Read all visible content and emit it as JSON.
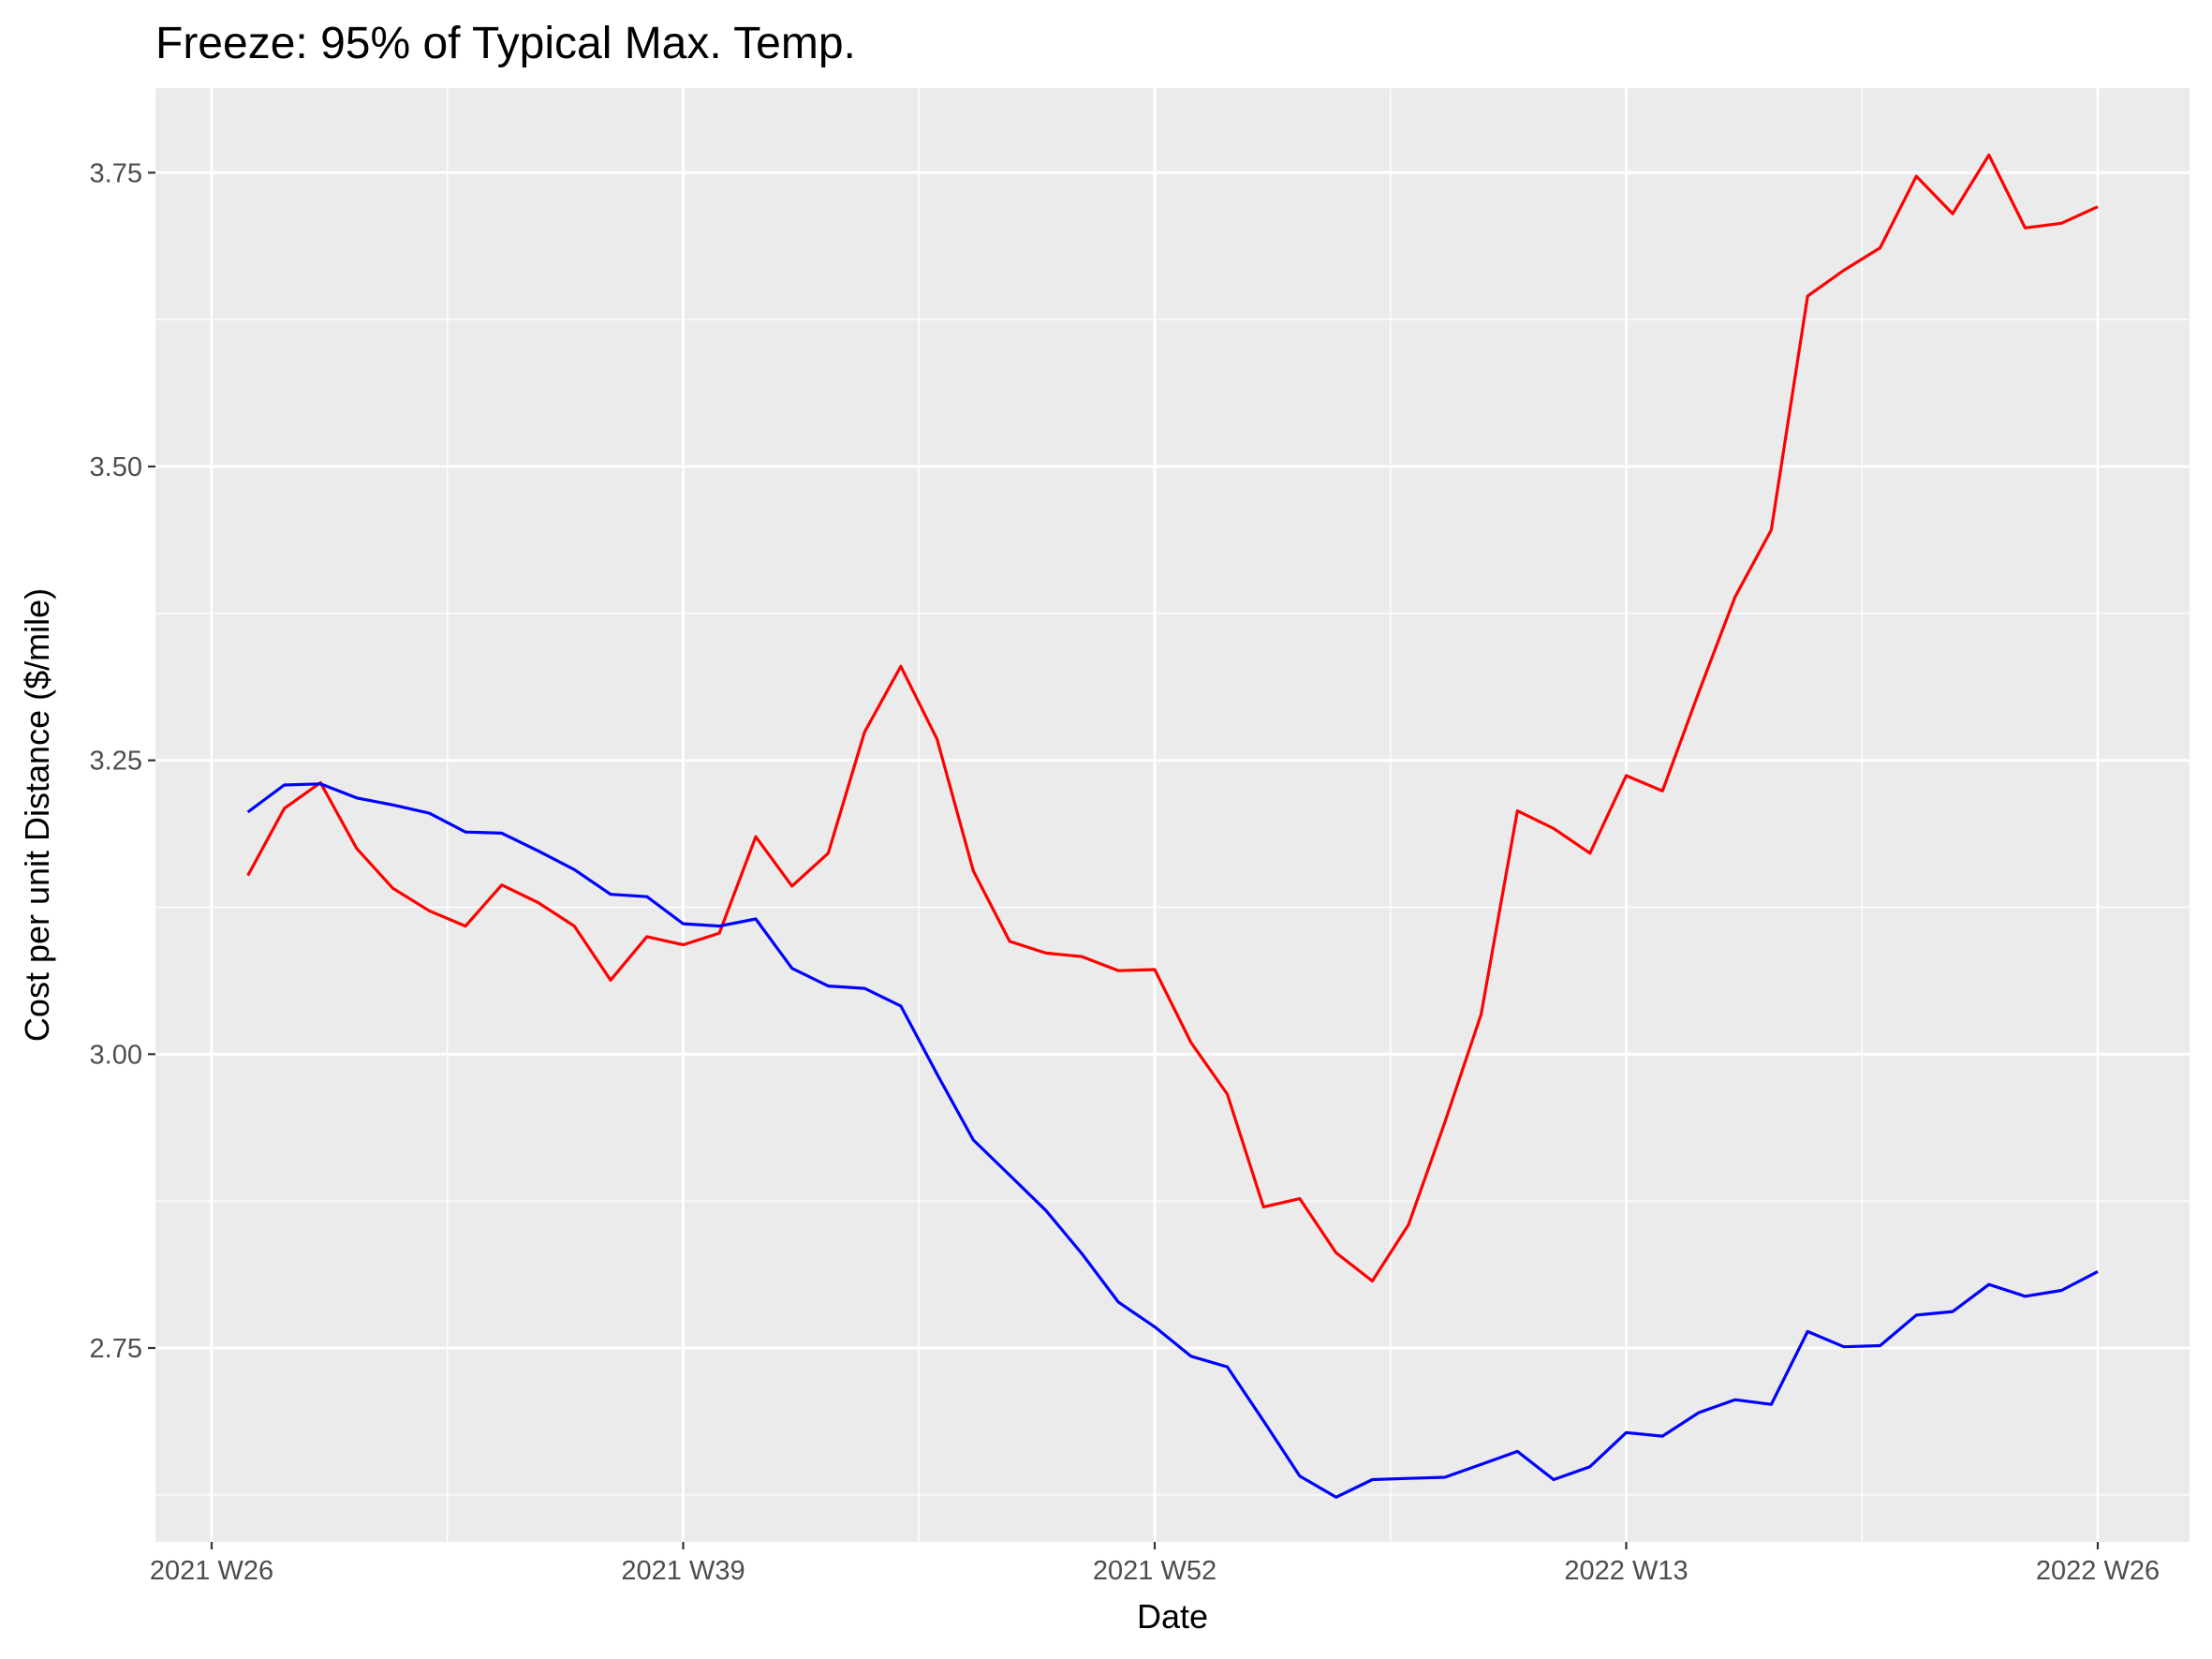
{
  "chart_data": {
    "type": "line",
    "title": "Freeze: 95% of Typical Max. Temp.",
    "xlabel": "Date",
    "ylabel": "Cost per unit Distance ($/mile)",
    "x_ticks": [
      "2021 W26",
      "2021 W39",
      "2021 W52",
      "2022 W13",
      "2022 W26"
    ],
    "y_ticks": [
      "2.75",
      "3.00",
      "3.25",
      "3.50",
      "3.75"
    ],
    "ylim": [
      2.585,
      3.822
    ],
    "grid": true,
    "legend": "none",
    "x_week_labels": [
      "2021 W27",
      "2021 W28",
      "2021 W29",
      "2021 W30",
      "2021 W31",
      "2021 W32",
      "2021 W33",
      "2021 W34",
      "2021 W35",
      "2021 W36",
      "2021 W37",
      "2021 W38",
      "2021 W39",
      "2021 W40",
      "2021 W41",
      "2021 W42",
      "2021 W43",
      "2021 W44",
      "2021 W45",
      "2021 W46",
      "2021 W47",
      "2021 W48",
      "2021 W49",
      "2021 W50",
      "2021 W51",
      "2021 W52",
      "2022 W01",
      "2022 W02",
      "2022 W03",
      "2022 W04",
      "2022 W05",
      "2022 W06",
      "2022 W07",
      "2022 W08",
      "2022 W09",
      "2022 W10",
      "2022 W11",
      "2022 W12",
      "2022 W13",
      "2022 W14",
      "2022 W15",
      "2022 W16",
      "2022 W17",
      "2022 W18",
      "2022 W19",
      "2022 W20",
      "2022 W21",
      "2022 W22",
      "2022 W23",
      "2022 W24",
      "2022 W25",
      "2022 W26"
    ],
    "series": [
      {
        "color": "#ff0000",
        "values": [
          3.152,
          3.209,
          3.231,
          3.175,
          3.141,
          3.122,
          3.109,
          3.144,
          3.129,
          3.109,
          3.063,
          3.1,
          3.093,
          3.103,
          3.185,
          3.143,
          3.171,
          3.274,
          3.33,
          3.268,
          3.156,
          3.096,
          3.086,
          3.083,
          3.071,
          3.072,
          3.01,
          2.966,
          2.87,
          2.877,
          2.831,
          2.807,
          2.855,
          2.942,
          3.034,
          3.207,
          3.192,
          3.171,
          3.237,
          3.224,
          3.308,
          3.389,
          3.446,
          3.645,
          3.667,
          3.686,
          3.747,
          3.715,
          3.765,
          3.703,
          3.707,
          3.721
        ]
      },
      {
        "color": "#0000ff",
        "values": [
          3.206,
          3.229,
          3.23,
          3.218,
          3.212,
          3.205,
          3.189,
          3.188,
          3.173,
          3.157,
          3.136,
          3.134,
          3.111,
          3.109,
          3.115,
          3.073,
          3.058,
          3.056,
          3.041,
          2.983,
          2.927,
          2.897,
          2.867,
          2.83,
          2.789,
          2.768,
          2.743,
          2.734,
          2.688,
          2.641,
          2.623,
          2.638,
          2.639,
          2.64,
          2.651,
          2.662,
          2.638,
          2.649,
          2.678,
          2.675,
          2.695,
          2.706,
          2.702,
          2.764,
          2.751,
          2.752,
          2.778,
          2.781,
          2.804,
          2.794,
          2.799,
          2.815
        ]
      }
    ]
  }
}
